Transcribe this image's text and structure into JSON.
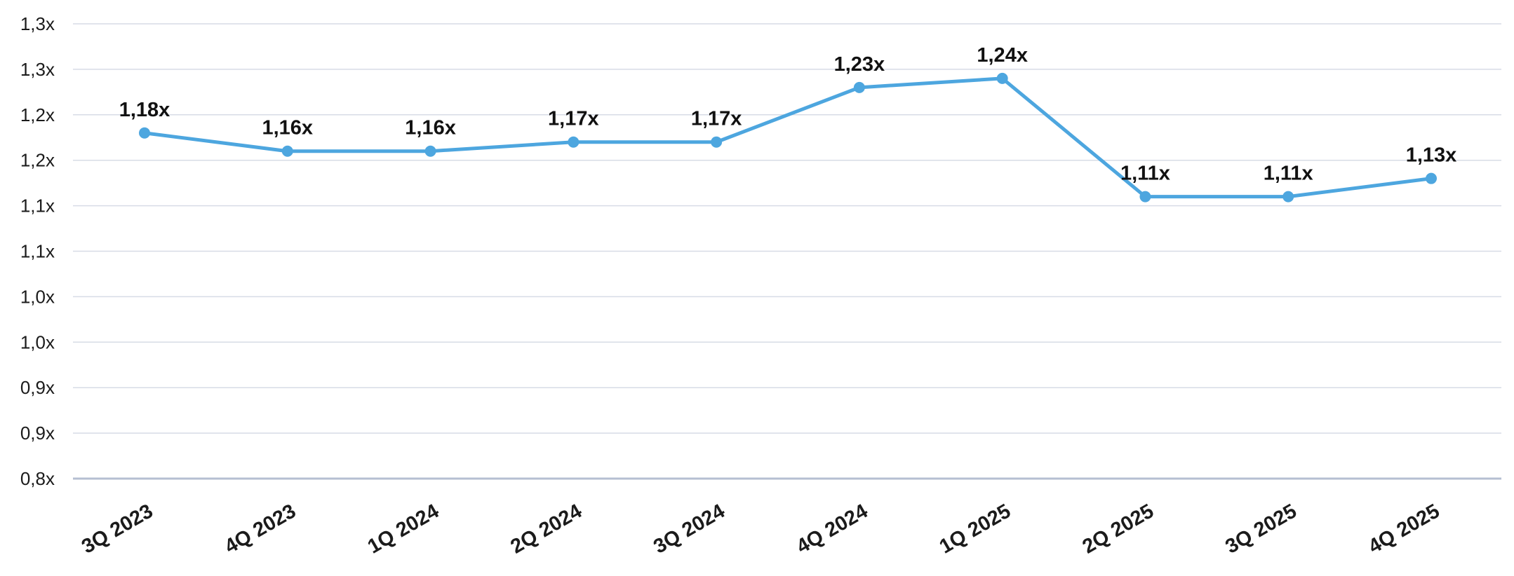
{
  "chart_data": {
    "type": "line",
    "categories": [
      "3Q 2023",
      "4Q 2023",
      "1Q 2024",
      "2Q 2024",
      "3Q 2024",
      "4Q 2024",
      "1Q 2025",
      "2Q 2025",
      "3Q 2025",
      "4Q 2025"
    ],
    "series": [
      {
        "values": [
          1.18,
          1.16,
          1.16,
          1.17,
          1.17,
          1.23,
          1.24,
          1.11,
          1.11,
          1.13
        ],
        "data_labels": [
          "1,18x",
          "1,16x",
          "1,16x",
          "1,17x",
          "1,17x",
          "1,23x",
          "1,24x",
          "1,11x",
          "1,11x",
          "1,13x"
        ],
        "color": "#4da6df"
      }
    ],
    "y_ticks": [
      {
        "value": 0.8,
        "label": "0,8x"
      },
      {
        "value": 0.85,
        "label": "0,9x"
      },
      {
        "value": 0.9,
        "label": "0,9x"
      },
      {
        "value": 0.95,
        "label": "1,0x"
      },
      {
        "value": 1.0,
        "label": "1,0x"
      },
      {
        "value": 1.05,
        "label": "1,1x"
      },
      {
        "value": 1.1,
        "label": "1,1x"
      },
      {
        "value": 1.15,
        "label": "1,2x"
      },
      {
        "value": 1.2,
        "label": "1,2x"
      },
      {
        "value": 1.25,
        "label": "1,3x"
      },
      {
        "value": 1.3,
        "label": "1,3x"
      }
    ],
    "ylim": [
      0.8,
      1.3
    ],
    "title": "",
    "xlabel": "",
    "ylabel": "",
    "grid": true,
    "legend": "none",
    "x_label_rotation": -30
  }
}
